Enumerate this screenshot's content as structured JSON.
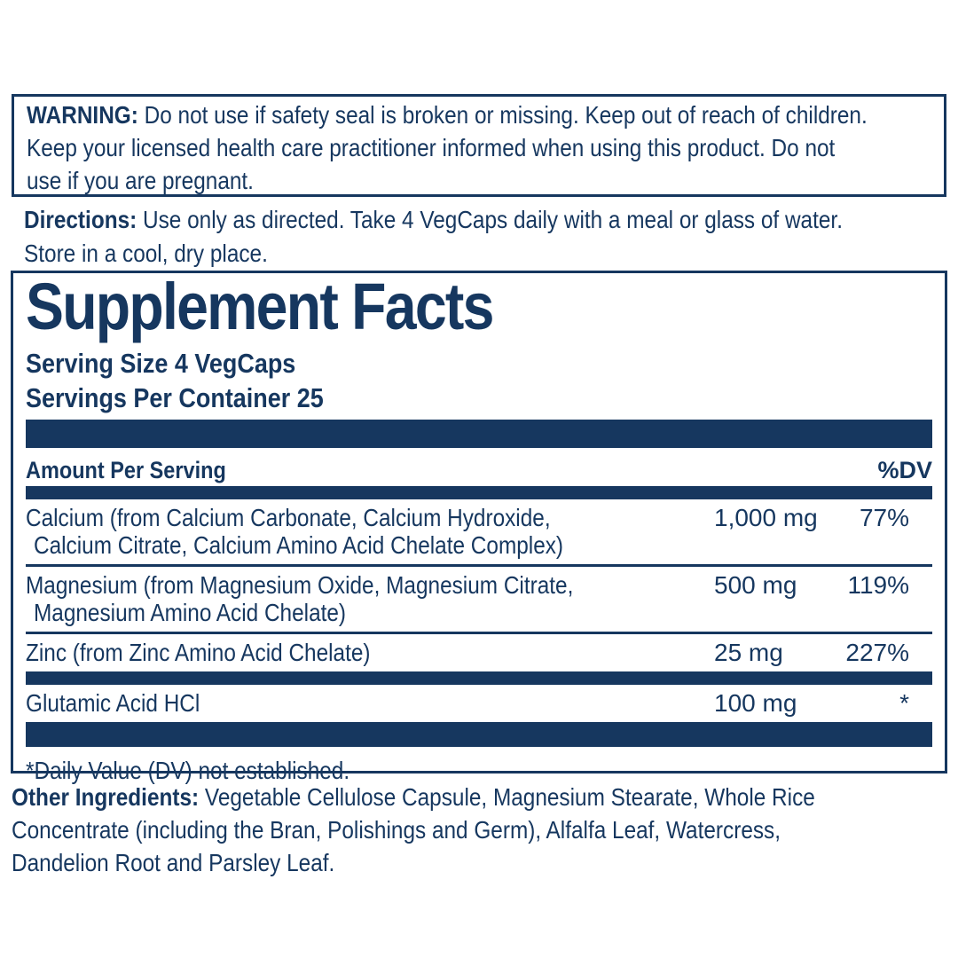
{
  "colors": {
    "ink": "#16375f"
  },
  "warning": {
    "label": "WARNING:",
    "lines": [
      "Do not use if safety seal is broken or missing. Keep out of reach of children.",
      "Keep your licensed health care practitioner informed when using this product. Do not",
      "use if you are pregnant."
    ]
  },
  "directions": {
    "label": "Directions:",
    "lines": [
      "Use only as directed. Take 4 VegCaps daily with a meal or glass of water.",
      "Store in a cool, dry place."
    ]
  },
  "supplement_facts": {
    "title": "Supplement Facts",
    "serving_size": "Serving Size 4 VegCaps",
    "servings_per_container": "Servings Per Container 25",
    "header": {
      "amount": "Amount Per Serving",
      "dv": "%DV"
    },
    "rows": [
      {
        "name_lines": [
          "Calcium (from Calcium Carbonate, Calcium Hydroxide,",
          "Calcium Citrate, Calcium Amino Acid Chelate Complex)"
        ],
        "amount": "1,000 mg",
        "dv": "77%"
      },
      {
        "name_lines": [
          "Magnesium (from Magnesium Oxide, Magnesium Citrate,",
          "Magnesium Amino Acid Chelate)"
        ],
        "amount": "500 mg",
        "dv": "119%"
      },
      {
        "name_lines": [
          "Zinc (from Zinc Amino Acid Chelate)"
        ],
        "amount": "25 mg",
        "dv": "227%"
      },
      {
        "name_lines": [
          "Glutamic Acid HCl"
        ],
        "amount": "100 mg",
        "dv": "*"
      }
    ],
    "footnote": "*Daily Value (DV) not established."
  },
  "other_ingredients": {
    "label": "Other Ingredients:",
    "lines": [
      "Vegetable Cellulose Capsule, Magnesium Stearate, Whole Rice",
      "Concentrate (including the Bran, Polishings and Germ), Alfalfa Leaf, Watercress,",
      "Dandelion Root and Parsley Leaf."
    ]
  }
}
